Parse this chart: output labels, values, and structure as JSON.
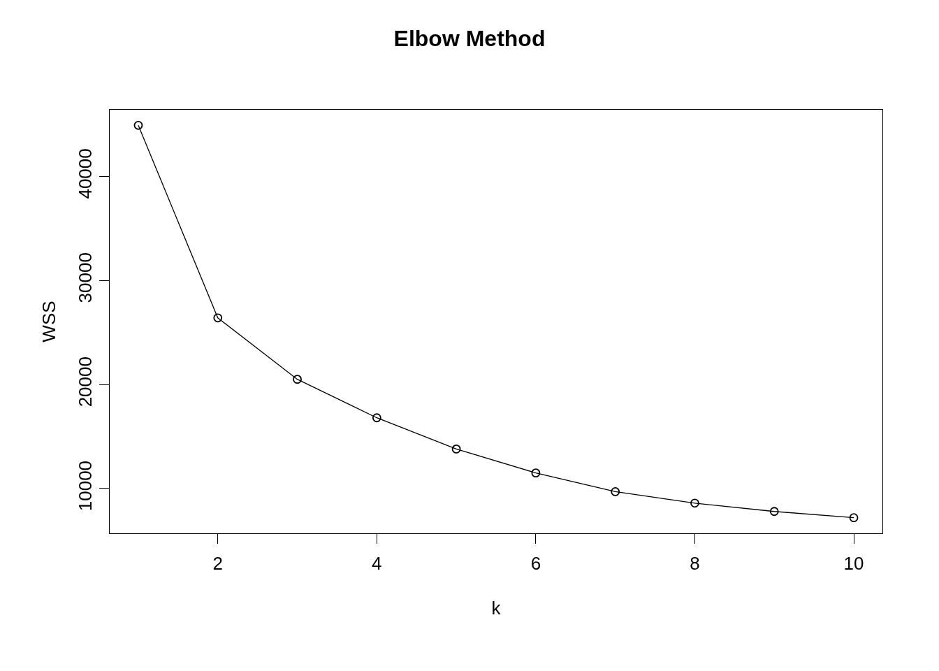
{
  "chart_data": {
    "type": "line",
    "title": "Elbow Method",
    "xlabel": "k",
    "ylabel": "WSS",
    "x": [
      1,
      2,
      3,
      4,
      5,
      6,
      7,
      8,
      9,
      10
    ],
    "series": [
      {
        "color": "#000000",
        "values": [
          44900,
          26400,
          20500,
          16800,
          13800,
          11500,
          9700,
          8600,
          7800,
          7200
        ]
      }
    ],
    "xlim": [
      0.64,
      10.36
    ],
    "xticks": [
      2,
      4,
      6,
      8,
      10
    ],
    "ylim": [
      5700,
      46400
    ],
    "yticks": [
      10000,
      20000,
      30000,
      40000
    ],
    "grid": false,
    "marker": "circle",
    "line_style": "solid"
  }
}
